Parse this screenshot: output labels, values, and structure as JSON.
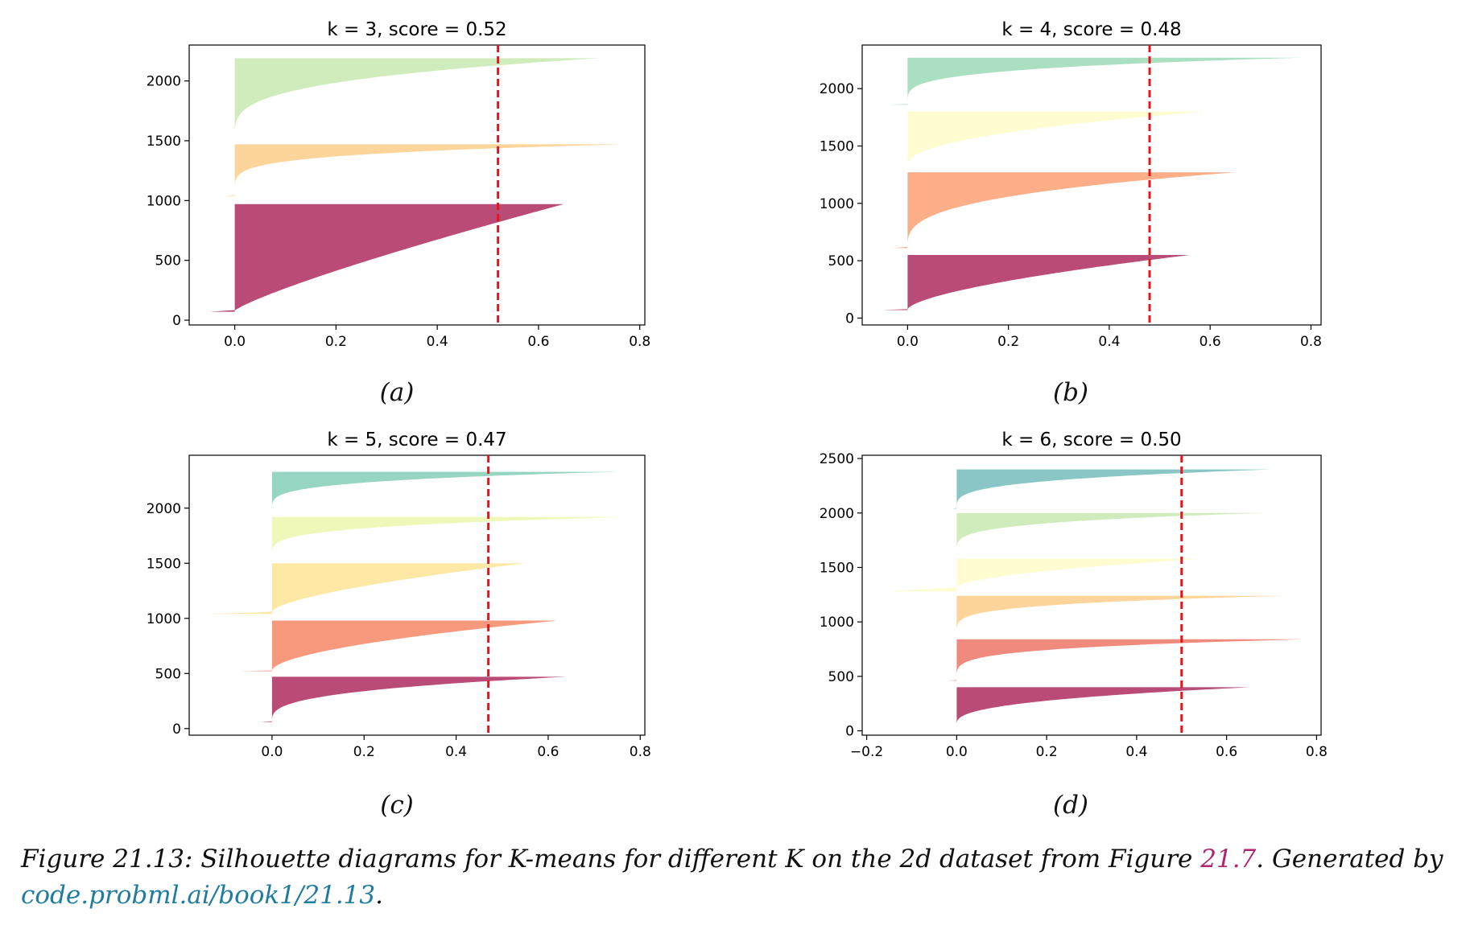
{
  "figure": {
    "caption_prefix": "Figure 21.13: Silhouette diagrams for K-means for different K on the 2d dataset from Figure ",
    "caption_ref": "21.7",
    "caption_mid": ". Generated by ",
    "caption_link": "code.probml.ai/book1/21.13",
    "caption_end": "."
  },
  "chart_data": [
    {
      "type": "area",
      "panel_label": "(a)",
      "title": "k = 3, score = 0.52",
      "xlim": [
        -0.09,
        0.81
      ],
      "ylim": [
        -40,
        2300
      ],
      "xticks": [
        0.0,
        0.2,
        0.4,
        0.6,
        0.8
      ],
      "yticks": [
        0,
        500,
        1000,
        1500,
        2000
      ],
      "score": 0.52,
      "clusters": [
        {
          "y_start": 70,
          "y_end": 970,
          "color": "#b94b76",
          "min": -0.05,
          "max": 0.65,
          "neg_frac": 0.01,
          "shape": 1.2
        },
        {
          "y_start": 1040,
          "y_end": 1470,
          "color": "#fdd49a",
          "min": -0.02,
          "max": 0.77,
          "neg_frac": 0.005,
          "shape": 5.0
        },
        {
          "y_start": 1520,
          "y_end": 2190,
          "color": "#d1ecbc",
          "min": 0.0,
          "max": 0.72,
          "neg_frac": 0.0,
          "shape": 3.5
        }
      ]
    },
    {
      "type": "area",
      "panel_label": "(b)",
      "title": "k = 4, score = 0.48",
      "xlim": [
        -0.09,
        0.82
      ],
      "ylim": [
        -60,
        2380
      ],
      "xticks": [
        0.0,
        0.2,
        0.4,
        0.6,
        0.8
      ],
      "yticks": [
        0,
        500,
        1000,
        1500,
        2000
      ],
      "score": 0.48,
      "clusters": [
        {
          "y_start": 70,
          "y_end": 550,
          "color": "#b94b76",
          "min": -0.05,
          "max": 0.56,
          "neg_frac": 0.01,
          "shape": 1.6
        },
        {
          "y_start": 610,
          "y_end": 1270,
          "color": "#fbae88",
          "min": -0.03,
          "max": 0.65,
          "neg_frac": 0.01,
          "shape": 3.0
        },
        {
          "y_start": 1330,
          "y_end": 1800,
          "color": "#fefcd0",
          "min": 0.0,
          "max": 0.59,
          "neg_frac": 0.0,
          "shape": 2.2
        },
        {
          "y_start": 1860,
          "y_end": 2270,
          "color": "#abdfc1",
          "min": -0.04,
          "max": 0.78,
          "neg_frac": 0.01,
          "shape": 4.0
        }
      ]
    },
    {
      "type": "area",
      "panel_label": "(c)",
      "title": "k = 5, score = 0.47",
      "xlim": [
        -0.18,
        0.81
      ],
      "ylim": [
        -60,
        2480
      ],
      "xticks": [
        0.0,
        0.2,
        0.4,
        0.6,
        0.8
      ],
      "yticks": [
        0,
        500,
        1000,
        1500,
        2000
      ],
      "score": 0.47,
      "clusters": [
        {
          "y_start": 60,
          "y_end": 470,
          "color": "#b94b76",
          "min": -0.025,
          "max": 0.64,
          "neg_frac": 0.01,
          "shape": 3.0
        },
        {
          "y_start": 520,
          "y_end": 980,
          "color": "#f7997d",
          "min": -0.07,
          "max": 0.62,
          "neg_frac": 0.01,
          "shape": 1.8
        },
        {
          "y_start": 1040,
          "y_end": 1500,
          "color": "#fee8a6",
          "min": -0.14,
          "max": 0.55,
          "neg_frac": 0.04,
          "shape": 1.6
        },
        {
          "y_start": 1560,
          "y_end": 1920,
          "color": "#eff8b8",
          "min": 0.0,
          "max": 0.77,
          "neg_frac": 0.0,
          "shape": 4.0
        },
        {
          "y_start": 1980,
          "y_end": 2330,
          "color": "#95d5c1",
          "min": 0.0,
          "max": 0.75,
          "neg_frac": 0.0,
          "shape": 4.0
        }
      ]
    },
    {
      "type": "area",
      "panel_label": "(d)",
      "title": "k = 6, score = 0.50",
      "xlim": [
        -0.21,
        0.81
      ],
      "ylim": [
        -40,
        2530
      ],
      "xticks": [
        -0.2,
        0.0,
        0.2,
        0.4,
        0.6,
        0.8
      ],
      "yticks": [
        0,
        500,
        1000,
        1500,
        2000,
        2500
      ],
      "score": 0.5,
      "clusters": [
        {
          "y_start": 60,
          "y_end": 400,
          "color": "#b94b76",
          "min": 0.0,
          "max": 0.65,
          "neg_frac": 0.0,
          "shape": 2.6
        },
        {
          "y_start": 460,
          "y_end": 840,
          "color": "#ef8a7c",
          "min": -0.02,
          "max": 0.77,
          "neg_frac": 0.005,
          "shape": 4.5
        },
        {
          "y_start": 880,
          "y_end": 1240,
          "color": "#fdd49a",
          "min": 0.0,
          "max": 0.73,
          "neg_frac": 0.0,
          "shape": 4.5
        },
        {
          "y_start": 1280,
          "y_end": 1580,
          "color": "#fefcd0",
          "min": -0.16,
          "max": 0.55,
          "neg_frac": 0.12,
          "shape": 1.8
        },
        {
          "y_start": 1640,
          "y_end": 2000,
          "color": "#d1ecbc",
          "min": 0.0,
          "max": 0.68,
          "neg_frac": 0.0,
          "shape": 4.0
        },
        {
          "y_start": 2040,
          "y_end": 2400,
          "color": "#89c6c5",
          "min": -0.01,
          "max": 0.7,
          "neg_frac": 0.005,
          "shape": 3.5
        }
      ]
    }
  ]
}
